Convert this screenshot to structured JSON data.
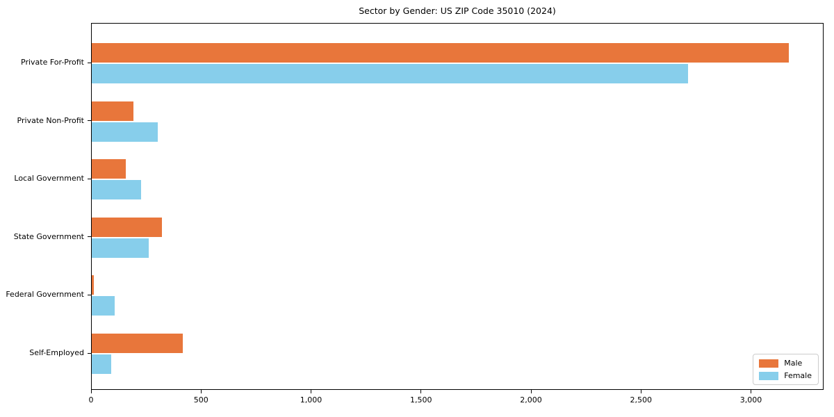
{
  "chart_data": {
    "type": "bar",
    "orientation": "horizontal",
    "title": "Sector by Gender: US ZIP Code 35010 (2024)",
    "categories": [
      "Private For-Profit",
      "Private Non-Profit",
      "Local Government",
      "State Government",
      "Federal Government",
      "Self-Employed"
    ],
    "series": [
      {
        "name": "Male",
        "color": "#E8763B",
        "values": [
          3175,
          190,
          155,
          320,
          10,
          415
        ]
      },
      {
        "name": "Female",
        "color": "#87CEEB",
        "values": [
          2715,
          300,
          225,
          260,
          105,
          90
        ]
      }
    ],
    "xlabel": "",
    "ylabel": "",
    "xlim": [
      0,
      3330
    ],
    "xticks": [
      0,
      500,
      1000,
      1500,
      2000,
      2500,
      3000
    ],
    "xtick_labels": [
      "0",
      "500",
      "1,000",
      "1,500",
      "2,000",
      "2,500",
      "3,000"
    ],
    "grid": false,
    "legend": {
      "position": "lower-right"
    },
    "colors": {
      "frame": "#000000",
      "background": "#ffffff",
      "legend_border": "#cccccc"
    }
  }
}
